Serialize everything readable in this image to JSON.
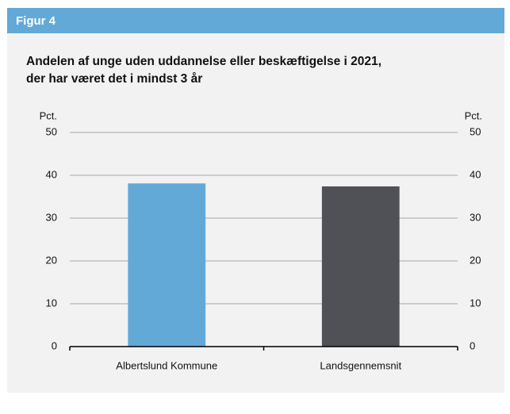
{
  "figure_label": "Figur 4",
  "chart_data": {
    "type": "bar",
    "title": [
      "Andelen af unge uden uddannelse eller beskæftigelse i 2021,",
      "der har været det i mindst 3 år"
    ],
    "y_label": "Pct.",
    "y2_label": "Pct.",
    "categories": [
      "Albertslund Kommune",
      "Landsgennemsnit"
    ],
    "values": [
      38.1,
      37.4
    ],
    "colors": [
      "#62a9d8",
      "#4f5156"
    ],
    "ylim": [
      0,
      50
    ],
    "yticks": [
      0,
      10,
      20,
      30,
      40,
      50
    ],
    "y2lim": [
      0,
      50
    ],
    "y2ticks": [
      0,
      10,
      20,
      30,
      40,
      50
    ],
    "grid": true
  }
}
